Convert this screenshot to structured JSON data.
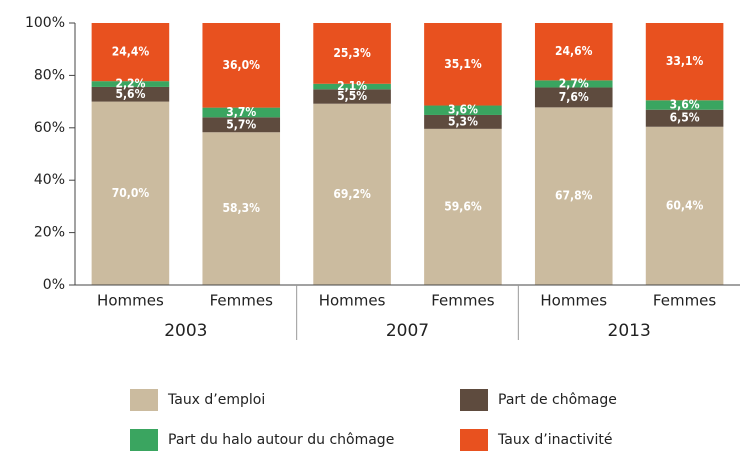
{
  "chart_data": {
    "type": "stacked-bar",
    "categories": [
      "Hommes",
      "Femmes",
      "Hommes",
      "Femmes",
      "Hommes",
      "Femmes"
    ],
    "groups": [
      "2003",
      "2007",
      "2013"
    ],
    "series": [
      {
        "name": "Taux d’emploi",
        "color": "#cbbb9f",
        "values": [
          70.0,
          58.3,
          69.2,
          59.6,
          67.8,
          60.4
        ],
        "value_labels": [
          "70,0%",
          "58,3%",
          "69,2%",
          "59,6%",
          "67,8%",
          "60,4%"
        ]
      },
      {
        "name": "Part de chômage",
        "color": "#5e4b3e",
        "values": [
          5.6,
          5.7,
          5.5,
          5.3,
          7.6,
          6.5
        ],
        "value_labels": [
          "5,6%",
          "5,7%",
          "5,5%",
          "5,3%",
          "7,6%",
          "6,5%"
        ]
      },
      {
        "name": "Part du halo autour du chômage",
        "color": "#3aa560",
        "values": [
          2.2,
          3.7,
          2.1,
          3.6,
          2.7,
          3.6
        ],
        "value_labels": [
          "2,2%",
          "3,7%",
          "2,1%",
          "3,6%",
          "2,7%",
          "3,6%"
        ]
      },
      {
        "name": "Taux d’inactivité",
        "color": "#e8511f",
        "values": [
          24.4,
          36.0,
          25.3,
          35.1,
          24.6,
          33.1
        ],
        "value_labels": [
          "24,4%",
          "36,0%",
          "25,3%",
          "35,1%",
          "24,6%",
          "33,1%"
        ]
      }
    ],
    "ylim": [
      0,
      100
    ],
    "yticks": [
      {
        "value": 0,
        "label": "0%"
      },
      {
        "value": 20,
        "label": "20%"
      },
      {
        "value": 40,
        "label": "40%"
      },
      {
        "value": 60,
        "label": "60%"
      },
      {
        "value": 80,
        "label": "80%"
      },
      {
        "value": 100,
        "label": "100%"
      }
    ],
    "grid": false
  }
}
